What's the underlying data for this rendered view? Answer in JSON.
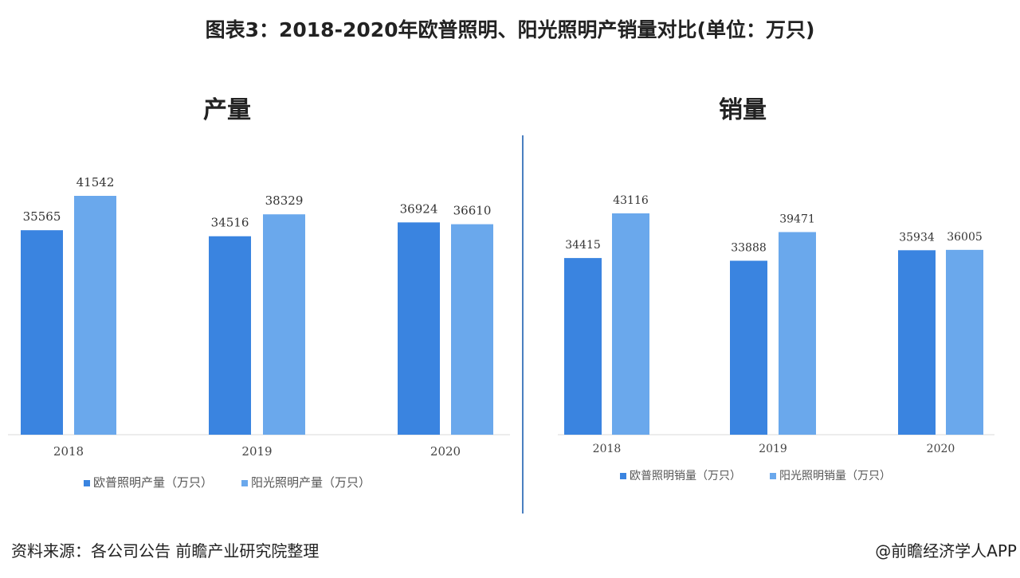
{
  "title": "图表3：2018-2020年欧普照明、阳光照明产销量对比(单位：万只)",
  "source": "资料来源：各公司公告 前瞻产业研究院整理",
  "credit": "@前瞻经济学人APP",
  "colors": {
    "opple": "#3a84e0",
    "yankon": "#6aa8ec",
    "divider": "#4a7fc0"
  },
  "chart_data": [
    {
      "type": "bar",
      "title": "产量",
      "categories": [
        "2018",
        "2019",
        "2020"
      ],
      "series": [
        {
          "name": "欧普照明产量（万只）",
          "values": [
            35565,
            34516,
            36924
          ]
        },
        {
          "name": "阳光照明产量（万只）",
          "values": [
            41542,
            38329,
            36610
          ]
        }
      ],
      "legend": "bottom",
      "grid": false
    },
    {
      "type": "bar",
      "title": "销量",
      "categories": [
        "2018",
        "2019",
        "2020"
      ],
      "series": [
        {
          "name": "欧普照明销量（万只）",
          "values": [
            34415,
            33888,
            35934
          ]
        },
        {
          "name": "阳光照明销量（万只）",
          "values": [
            43116,
            39471,
            36005
          ]
        }
      ],
      "legend": "bottom",
      "grid": false
    }
  ]
}
